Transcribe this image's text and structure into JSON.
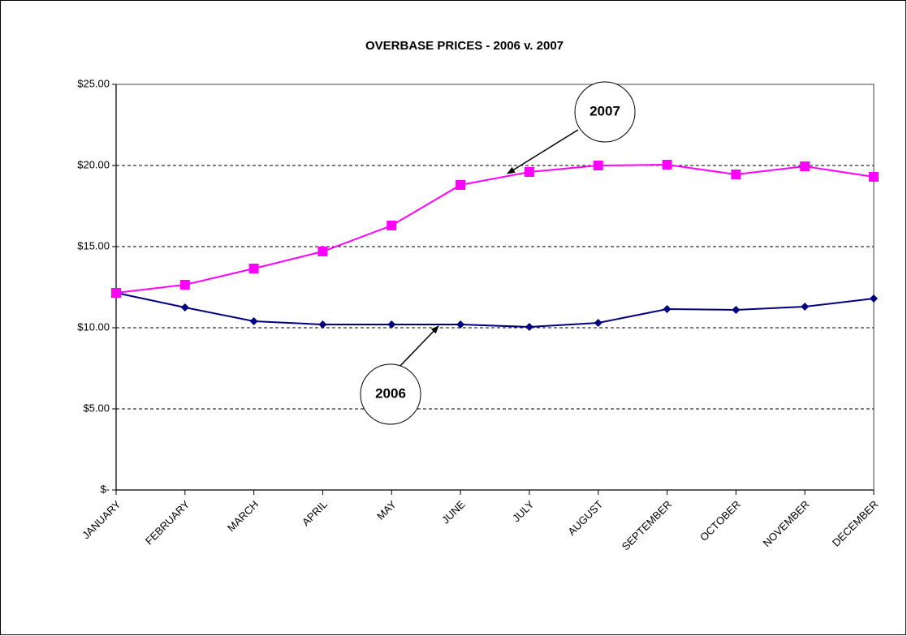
{
  "chart_data": {
    "type": "line",
    "title": "OVERBASE PRICES - 2006 v. 2007",
    "categories": [
      "JANUARY",
      "FEBRUARY",
      "MARCH",
      "APRIL",
      "MAY",
      "JUNE",
      "JULY",
      "AUGUST",
      "SEPTEMBER",
      "OCTOBER",
      "NOVEMBER",
      "DECEMBER"
    ],
    "series": [
      {
        "name": "2006",
        "color": "#000080",
        "marker": "diamond",
        "values": [
          12.15,
          11.25,
          10.4,
          10.2,
          10.2,
          10.2,
          10.05,
          10.3,
          11.15,
          11.1,
          11.3,
          11.8
        ]
      },
      {
        "name": "2007",
        "color": "#ff00ff",
        "marker": "square",
        "values": [
          12.15,
          12.65,
          13.65,
          14.7,
          16.3,
          18.8,
          19.6,
          20.0,
          20.05,
          19.45,
          19.95,
          19.3
        ]
      }
    ],
    "ylim": [
      0,
      25
    ],
    "yticks": [
      {
        "value": 0,
        "label": "$-"
      },
      {
        "value": 5,
        "label": "$5.00"
      },
      {
        "value": 10,
        "label": "$10.00"
      },
      {
        "value": 15,
        "label": "$15.00"
      },
      {
        "value": 20,
        "label": "$20.00"
      },
      {
        "value": 25,
        "label": "$25.00"
      }
    ],
    "grid": true
  }
}
